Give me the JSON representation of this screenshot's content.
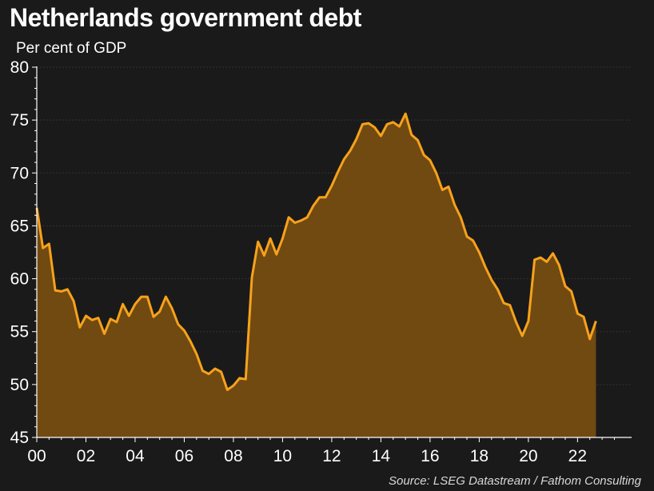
{
  "header": {
    "title": "Netherlands government debt",
    "subtitle": "Per cent of GDP"
  },
  "footer": {
    "source": "Source: LSEG Datastream / Fathom Consulting"
  },
  "colors": {
    "background": "#1a1a1a",
    "line": "#f7a21b",
    "area": "#714a12",
    "text": "#ffffff"
  },
  "chart_data": {
    "type": "area",
    "ylim": [
      45,
      80
    ],
    "yticks": [
      "45",
      "50",
      "55",
      "60",
      "65",
      "70",
      "75",
      "80"
    ],
    "xlim": [
      2000,
      2024.2
    ],
    "xticks": [
      {
        "value": 2000,
        "label": "00"
      },
      {
        "value": 2002,
        "label": "02"
      },
      {
        "value": 2004,
        "label": "04"
      },
      {
        "value": 2006,
        "label": "06"
      },
      {
        "value": 2008,
        "label": "08"
      },
      {
        "value": 2010,
        "label": "10"
      },
      {
        "value": 2012,
        "label": "12"
      },
      {
        "value": 2014,
        "label": "14"
      },
      {
        "value": 2016,
        "label": "16"
      },
      {
        "value": 2018,
        "label": "18"
      },
      {
        "value": 2020,
        "label": "20"
      },
      {
        "value": 2022,
        "label": "22"
      }
    ],
    "grid": true,
    "series": [
      {
        "x": [
          2000.0,
          2000.25,
          2000.5,
          2000.75,
          2001.0,
          2001.25,
          2001.5,
          2001.75,
          2002.0,
          2002.25,
          2002.5,
          2002.75,
          2003.0,
          2003.25,
          2003.5,
          2003.75,
          2004.0,
          2004.25,
          2004.5,
          2004.75,
          2005.0,
          2005.25,
          2005.5,
          2005.75,
          2006.0,
          2006.25,
          2006.5,
          2006.75,
          2007.0,
          2007.25,
          2007.5,
          2007.75,
          2008.0,
          2008.25,
          2008.5,
          2008.75,
          2009.0,
          2009.25,
          2009.5,
          2009.75,
          2010.0,
          2010.25,
          2010.5,
          2010.75,
          2011.0,
          2011.25,
          2011.5,
          2011.75,
          2012.0,
          2012.25,
          2012.5,
          2012.75,
          2013.0,
          2013.25,
          2013.5,
          2013.75,
          2014.0,
          2014.25,
          2014.5,
          2014.75,
          2015.0,
          2015.25,
          2015.5,
          2015.75,
          2016.0,
          2016.25,
          2016.5,
          2016.75,
          2017.0,
          2017.25,
          2017.5,
          2017.75,
          2018.0,
          2018.25,
          2018.5,
          2018.75,
          2019.0,
          2019.25,
          2019.5,
          2019.75,
          2020.0,
          2020.25,
          2020.5,
          2020.75,
          2021.0,
          2021.25,
          2021.5,
          2021.75,
          2022.0,
          2022.25,
          2022.5,
          2022.75
        ],
        "values": [
          66.7,
          62.9,
          63.3,
          58.9,
          58.8,
          59.0,
          57.9,
          55.4,
          56.5,
          56.1,
          56.3,
          54.8,
          56.2,
          55.9,
          57.6,
          56.5,
          57.6,
          58.3,
          58.3,
          56.4,
          56.9,
          58.3,
          57.2,
          55.7,
          55.1,
          54.1,
          52.9,
          51.3,
          51.0,
          51.5,
          51.2,
          49.5,
          49.9,
          50.6,
          50.5,
          60.1,
          63.5,
          62.2,
          63.8,
          62.3,
          63.8,
          65.8,
          65.3,
          65.5,
          65.8,
          66.9,
          67.7,
          67.7,
          68.8,
          70.1,
          71.3,
          72.1,
          73.2,
          74.6,
          74.7,
          74.3,
          73.5,
          74.6,
          74.8,
          74.4,
          75.6,
          73.6,
          73.1,
          71.7,
          71.2,
          70.0,
          68.4,
          68.7,
          67.0,
          65.8,
          64.0,
          63.6,
          62.5,
          61.1,
          59.9,
          59.0,
          57.7,
          57.5,
          55.9,
          54.6,
          56.0,
          61.8,
          62.0,
          61.6,
          62.4,
          61.3,
          59.3,
          58.8,
          56.7,
          56.4,
          54.3,
          56.0
        ]
      }
    ]
  }
}
